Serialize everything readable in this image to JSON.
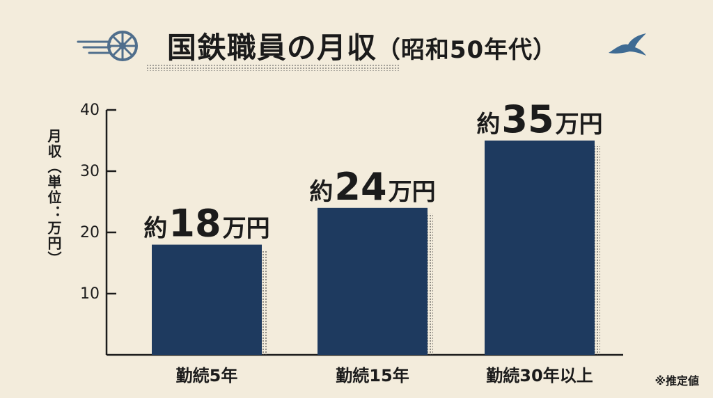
{
  "title": {
    "main": "国鉄職員の月収",
    "sub": "（昭和50年代）"
  },
  "icons": {
    "left": "winged-wheel-icon",
    "right": "swallow-icon"
  },
  "chart_data": {
    "type": "bar",
    "title": "国鉄職員の月収（昭和50年代）",
    "ylabel": "月収（単位：万円）",
    "xlabel": "",
    "categories": [
      "勤続5年",
      "勤続15年",
      "勤続30年以上"
    ],
    "values": [
      18,
      24,
      35
    ],
    "data_labels": [
      {
        "prefix": "約",
        "number": "18",
        "unit": "万円"
      },
      {
        "prefix": "約",
        "number": "24",
        "unit": "万円"
      },
      {
        "prefix": "約",
        "number": "35",
        "unit": "万円"
      }
    ],
    "yticks": [
      10,
      20,
      30,
      40
    ],
    "ylim": [
      0,
      40
    ],
    "grid": false,
    "bar_color": "#1e3a5f",
    "footnote": "※推定値"
  },
  "colors": {
    "background": "#f3ecdc",
    "bar": "#1e3a5f",
    "text": "#1b1b1b"
  }
}
